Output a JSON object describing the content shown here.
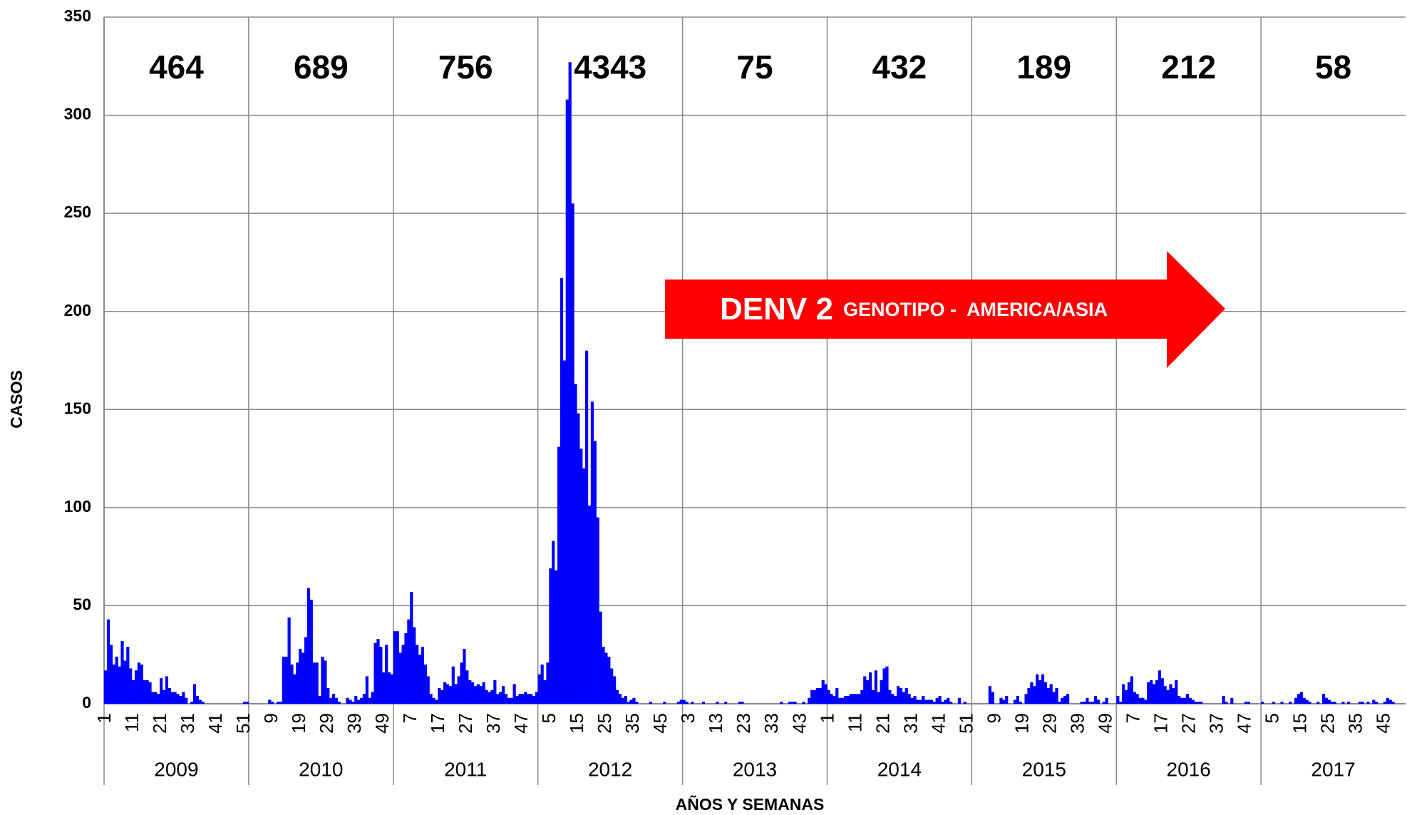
{
  "chart_data": {
    "type": "bar",
    "y_label": "CASOS",
    "x_label": "AÑOS Y SEMANAS",
    "ylim": [
      0,
      350
    ],
    "yticks": [
      0,
      50,
      100,
      150,
      200,
      250,
      300,
      350
    ],
    "grid": true,
    "color": "#0000ff",
    "years": [
      "2009",
      "2010",
      "2011",
      "2012",
      "2013",
      "2014",
      "2015",
      "2016",
      "2017"
    ],
    "year_totals": [
      464,
      689,
      756,
      4343,
      75,
      432,
      189,
      212,
      58
    ],
    "annotation": {
      "title": "DENV 2",
      "subtitle": "GENOTIPO -  AMERICA/ASIA",
      "color": "#ff0000"
    },
    "categories": [
      "1",
      null,
      null,
      null,
      null,
      null,
      null,
      null,
      null,
      null,
      "11",
      null,
      null,
      null,
      null,
      null,
      null,
      null,
      null,
      null,
      "21",
      null,
      null,
      null,
      null,
      null,
      null,
      null,
      null,
      null,
      "31",
      null,
      null,
      null,
      null,
      null,
      null,
      null,
      null,
      null,
      "41",
      null,
      null,
      null,
      null,
      null,
      null,
      null,
      null,
      null,
      "51",
      null,
      null,
      null,
      null,
      null,
      null,
      null,
      null,
      null,
      "9",
      null,
      null,
      null,
      null,
      null,
      null,
      null,
      null,
      null,
      "19",
      null,
      null,
      null,
      null,
      null,
      null,
      null,
      null,
      null,
      "29",
      null,
      null,
      null,
      null,
      null,
      null,
      null,
      null,
      null,
      "39",
      null,
      null,
      null,
      null,
      null,
      null,
      null,
      null,
      null,
      "49",
      null,
      null,
      null,
      null,
      null,
      null,
      null,
      null,
      null,
      "7",
      null,
      null,
      null,
      null,
      null,
      null,
      null,
      null,
      null,
      "17",
      null,
      null,
      null,
      null,
      null,
      null,
      null,
      null,
      null,
      "27",
      null,
      null,
      null,
      null,
      null,
      null,
      null,
      null,
      null,
      "37",
      null,
      null,
      null,
      null,
      null,
      null,
      null,
      null,
      null,
      "47",
      null,
      null,
      null,
      null,
      null,
      null,
      null,
      null,
      null,
      "5",
      null,
      null,
      null,
      null,
      null,
      null,
      null,
      null,
      null,
      "15",
      null,
      null,
      null,
      null,
      null,
      null,
      null,
      null,
      null,
      "25",
      null,
      null,
      null,
      null,
      null,
      null,
      null,
      null,
      null,
      "35",
      null,
      null,
      null,
      null,
      null,
      null,
      null,
      null,
      null,
      "45",
      null,
      null,
      null,
      null,
      null,
      null,
      null,
      null,
      null,
      "3",
      null,
      null,
      null,
      null,
      null,
      null,
      null,
      null,
      null,
      "13",
      null,
      null,
      null,
      null,
      null,
      null,
      null,
      null,
      null,
      "23",
      null,
      null,
      null,
      null,
      null,
      null,
      null,
      null,
      null,
      "33",
      null,
      null,
      null,
      null,
      null,
      null,
      null,
      null,
      null,
      "43",
      null,
      null,
      null,
      null,
      null,
      null,
      null,
      null,
      null,
      "1",
      null,
      null,
      null,
      null,
      null,
      null,
      null,
      null,
      null,
      "11",
      null,
      null,
      null,
      null,
      null,
      null,
      null,
      null,
      null,
      "21",
      null,
      null,
      null,
      null,
      null,
      null,
      null,
      null,
      null,
      "31",
      null,
      null,
      null,
      null,
      null,
      null,
      null,
      null,
      null,
      "41",
      null,
      null,
      null,
      null,
      null,
      null,
      null,
      null,
      null,
      "51",
      null,
      null,
      null,
      null,
      null,
      null,
      null,
      null,
      null,
      "9",
      null,
      null,
      null,
      null,
      null,
      null,
      null,
      null,
      null,
      "19",
      null,
      null,
      null,
      null,
      null,
      null,
      null,
      null,
      null,
      "29",
      null,
      null,
      null,
      null,
      null,
      null,
      null,
      null,
      null,
      "39",
      null,
      null,
      null,
      null,
      null,
      null,
      null,
      null,
      null,
      "49",
      null,
      null,
      null,
      null,
      null,
      null,
      null,
      null,
      null,
      "7",
      null,
      null,
      null,
      null,
      null,
      null,
      null,
      null,
      null,
      "17",
      null,
      null,
      null,
      null,
      null,
      null,
      null,
      null,
      null,
      "27",
      null,
      null,
      null,
      null,
      null,
      null,
      null,
      null,
      null,
      "37",
      null,
      null,
      null,
      null,
      null,
      null,
      null,
      null,
      null,
      "47",
      null,
      null,
      null,
      null,
      null,
      null,
      null,
      null,
      null,
      "5",
      null,
      null,
      null,
      null,
      null,
      null,
      null,
      null,
      null,
      "15",
      null,
      null,
      null,
      null,
      null,
      null,
      null,
      null,
      null,
      "25",
      null,
      null,
      null,
      null,
      null,
      null,
      null,
      null,
      null,
      "35",
      null,
      null,
      null,
      null,
      null,
      null,
      null,
      null,
      null,
      "45",
      null,
      null,
      null,
      null,
      null,
      null,
      null
    ],
    "values": [
      17,
      43,
      30,
      20,
      24,
      19,
      32,
      22,
      29,
      18,
      12,
      17,
      21,
      20,
      12,
      12,
      11,
      6,
      6,
      5,
      13,
      7,
      14,
      8,
      6,
      6,
      5,
      4,
      6,
      3,
      0,
      1,
      10,
      4,
      2,
      1,
      0,
      0,
      0,
      0,
      0,
      0,
      0,
      0,
      0,
      0,
      0,
      0,
      0,
      0,
      1,
      1,
      0,
      0,
      0,
      0,
      0,
      0,
      0,
      2,
      1,
      0,
      1,
      1,
      24,
      24,
      44,
      20,
      15,
      21,
      28,
      26,
      34,
      59,
      53,
      21,
      21,
      4,
      24,
      22,
      8,
      3,
      5,
      3,
      1,
      0,
      0,
      3,
      2,
      1,
      4,
      2,
      3,
      5,
      14,
      3,
      6,
      31,
      33,
      29,
      16,
      30,
      16,
      15,
      37,
      37,
      26,
      30,
      36,
      43,
      57,
      39,
      30,
      25,
      29,
      20,
      14,
      5,
      3,
      2,
      8,
      7,
      11,
      10,
      9,
      19,
      10,
      14,
      21,
      28,
      17,
      12,
      11,
      9,
      10,
      9,
      11,
      7,
      6,
      7,
      12,
      5,
      6,
      9,
      5,
      3,
      3,
      10,
      4,
      5,
      5,
      6,
      5,
      5,
      4,
      6,
      15,
      20,
      12,
      21,
      69,
      83,
      68,
      131,
      217,
      175,
      308,
      327,
      255,
      163,
      148,
      130,
      120,
      180,
      101,
      154,
      134,
      95,
      47,
      29,
      26,
      24,
      18,
      14,
      7,
      5,
      3,
      4,
      1,
      2,
      3,
      1,
      0,
      0,
      0,
      0,
      1,
      0,
      0,
      0,
      0,
      1,
      0,
      0,
      0,
      0,
      1,
      2,
      2,
      1,
      0,
      1,
      0,
      0,
      0,
      1,
      0,
      0,
      0,
      0,
      1,
      0,
      0,
      1,
      0,
      0,
      0,
      0,
      1,
      1,
      0,
      0,
      0,
      0,
      0,
      0,
      0,
      0,
      0,
      0,
      0,
      0,
      0,
      1,
      0,
      0,
      1,
      1,
      1,
      0,
      0,
      1,
      0,
      3,
      7,
      7,
      8,
      8,
      12,
      10,
      7,
      5,
      4,
      8,
      3,
      3,
      4,
      4,
      5,
      5,
      5,
      5,
      7,
      14,
      12,
      16,
      7,
      17,
      6,
      12,
      18,
      19,
      7,
      5,
      4,
      9,
      8,
      6,
      8,
      5,
      3,
      4,
      2,
      2,
      4,
      2,
      2,
      2,
      1,
      3,
      4,
      1,
      2,
      3,
      1,
      0,
      0,
      3,
      0,
      1,
      0,
      0,
      0,
      0,
      0,
      0,
      0,
      0,
      9,
      6,
      0,
      0,
      3,
      2,
      4,
      0,
      0,
      2,
      4,
      1,
      0,
      5,
      8,
      11,
      9,
      15,
      12,
      15,
      11,
      8,
      10,
      6,
      8,
      1,
      3,
      4,
      5,
      0,
      0,
      0,
      0,
      1,
      1,
      3,
      1,
      1,
      4,
      2,
      0,
      1,
      3,
      0,
      0,
      0,
      4,
      1,
      10,
      7,
      11,
      14,
      6,
      5,
      3,
      3,
      2,
      11,
      12,
      10,
      12,
      17,
      13,
      9,
      7,
      10,
      8,
      12,
      4,
      3,
      3,
      5,
      3,
      2,
      1,
      1,
      1,
      0,
      0,
      0,
      0,
      0,
      0,
      0,
      4,
      1,
      0,
      3,
      0,
      0,
      0,
      0,
      1,
      1,
      0,
      0,
      0,
      0,
      1,
      0,
      0,
      0,
      1,
      0,
      0,
      1,
      0,
      0,
      1,
      0,
      3,
      5,
      6,
      3,
      2,
      1,
      0,
      0,
      1,
      0,
      5,
      3,
      2,
      1,
      1,
      0,
      0,
      1,
      0,
      1,
      0,
      0,
      0,
      1,
      1,
      0,
      1,
      0,
      2,
      1,
      0,
      0,
      1,
      3,
      2,
      1,
      0,
      0,
      0,
      0
    ]
  }
}
